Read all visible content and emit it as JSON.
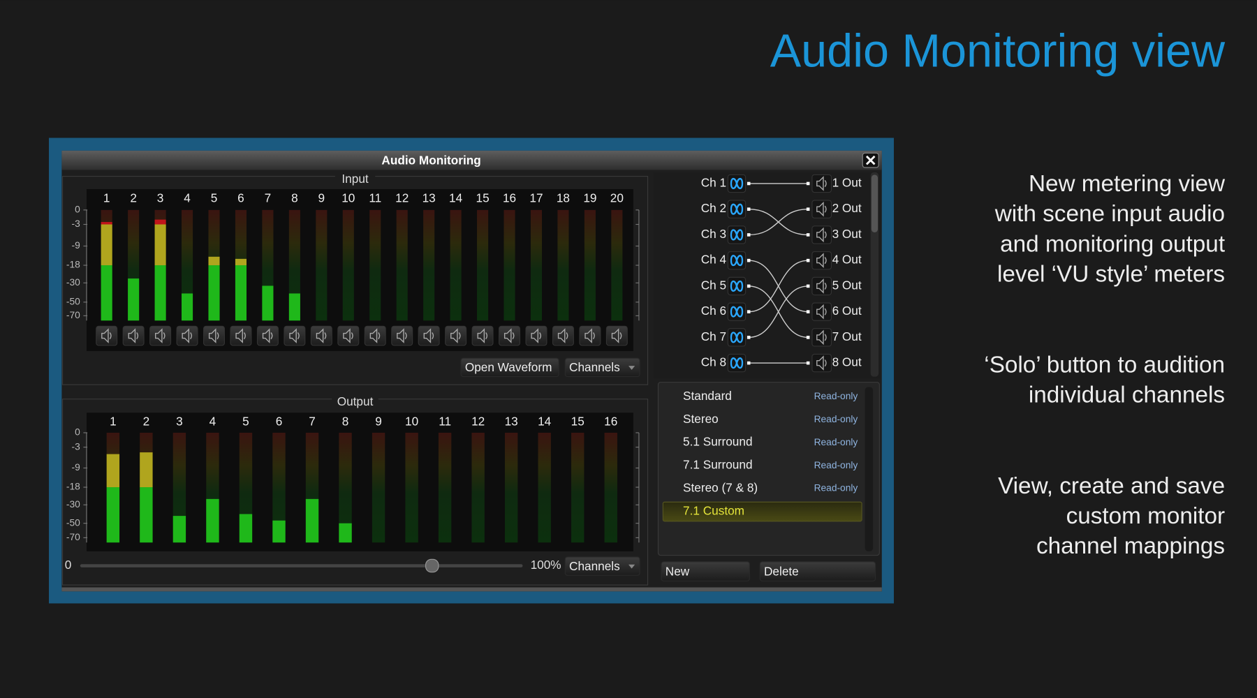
{
  "header": {
    "title": "Audio Monitoring view"
  },
  "notes": [
    [
      "New metering view",
      "with scene input audio",
      "and monitoring output",
      "level ‘VU style’ meters"
    ],
    [
      "‘Solo’ button to audition",
      "individual channels"
    ],
    [
      "View, create and save",
      "custom monitor",
      "channel mappings"
    ]
  ],
  "window": {
    "title": "Audio Monitoring",
    "input": {
      "label": "Input",
      "channels": [
        "1",
        "2",
        "3",
        "4",
        "5",
        "6",
        "7",
        "8",
        "9",
        "10",
        "11",
        "12",
        "13",
        "14",
        "15",
        "16",
        "17",
        "18",
        "19",
        "20"
      ],
      "scale": [
        0,
        -3,
        -9,
        -18,
        -30,
        -50,
        -70
      ],
      "levels": [
        -2.5,
        -27,
        -2,
        -41,
        -14,
        -15,
        -33,
        -41,
        null,
        null,
        null,
        null,
        null,
        null,
        null,
        null,
        null,
        null,
        null,
        null
      ]
    },
    "input_buttons": [
      "Open Waveform",
      "Channels"
    ],
    "output": {
      "label": "Output",
      "channels": [
        "1",
        "2",
        "3",
        "4",
        "5",
        "6",
        "7",
        "8",
        "9",
        "10",
        "11",
        "12",
        "13",
        "14",
        "15",
        "16"
      ],
      "scale": [
        0,
        -3,
        -9,
        -18,
        -30,
        -50,
        -70
      ],
      "levels": [
        -5,
        -4.5,
        -42,
        -26,
        -40,
        -47,
        -26,
        -50,
        null,
        null,
        null,
        null,
        null,
        null,
        null,
        null
      ]
    },
    "slider": {
      "min_label": "0",
      "max_label": "100%"
    },
    "output_button": "Channels",
    "routing": {
      "inputs": [
        "Ch 1",
        "Ch 2",
        "Ch 3",
        "Ch 4",
        "Ch 5",
        "Ch 6",
        "Ch 7",
        "Ch 8"
      ],
      "outputs": [
        "1 Out",
        "2 Out",
        "3 Out",
        "4 Out",
        "5 Out",
        "6 Out",
        "7 Out",
        "8 Out"
      ],
      "links": [
        1,
        3,
        2,
        6,
        7,
        4,
        5,
        8
      ]
    },
    "presets": [
      {
        "name": "Standard",
        "status": "Read-only"
      },
      {
        "name": "Stereo",
        "status": "Read-only"
      },
      {
        "name": "5.1 Surround",
        "status": "Read-only"
      },
      {
        "name": "7.1 Surround",
        "status": "Read-only"
      },
      {
        "name": "Stereo (7 & 8)",
        "status": "Read-only"
      },
      {
        "name": "7.1 Custom",
        "selected": true
      }
    ],
    "actions": [
      "New",
      "Delete"
    ]
  }
}
